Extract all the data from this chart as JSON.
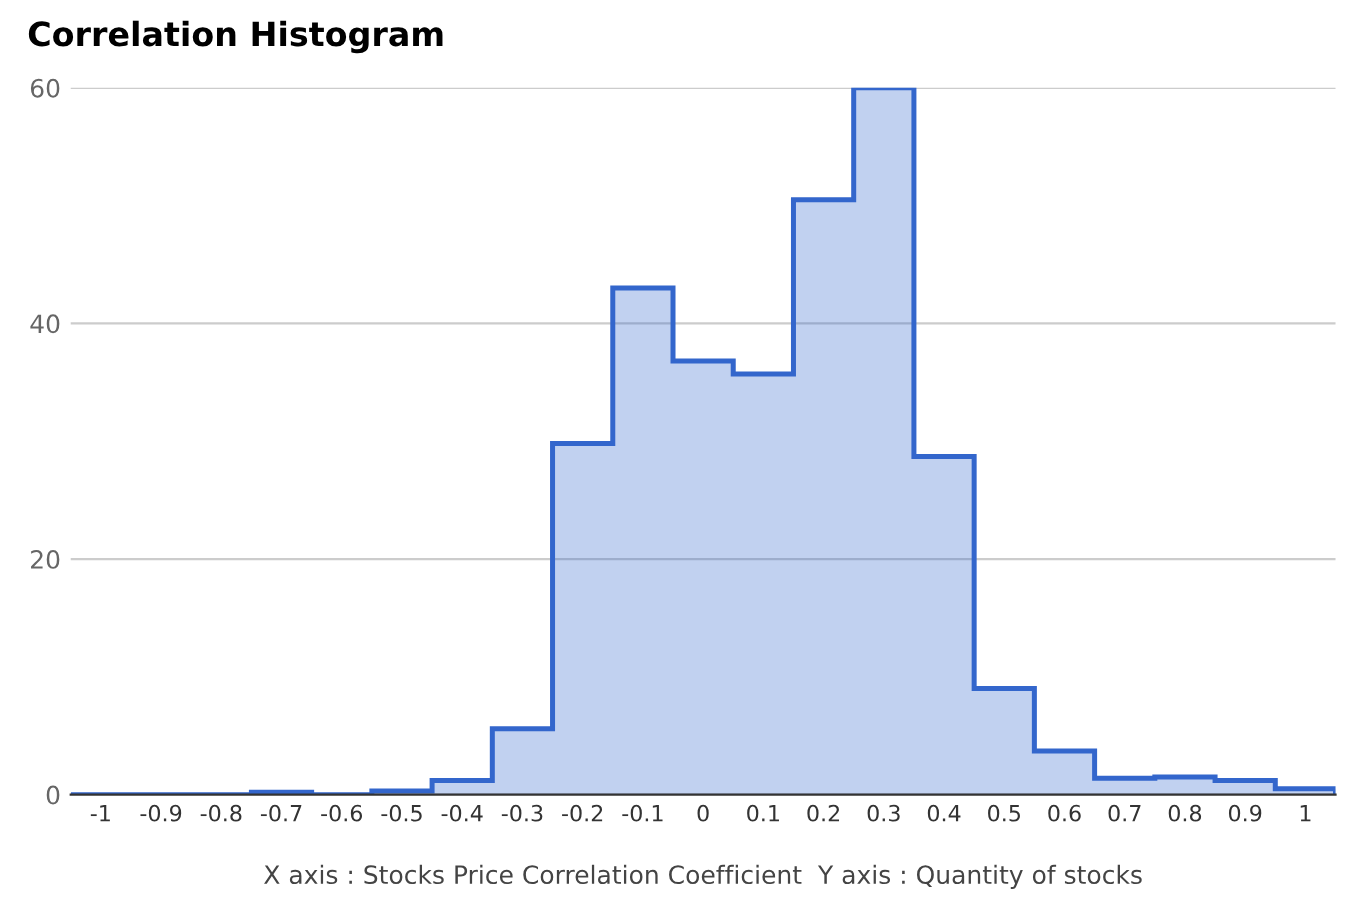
{
  "chart_data": {
    "type": "histogram",
    "title": "Correlation Histogram",
    "xlabel": "X axis : Stocks Price Correlation Coefficient  Y axis : Quantity of stocks",
    "bins": [
      -1.05,
      -0.95,
      -0.85,
      -0.75,
      -0.65,
      -0.55,
      -0.45,
      -0.35,
      -0.25,
      -0.15,
      -0.05,
      0.05,
      0.15,
      0.25,
      0.35,
      0.45,
      0.55,
      0.65,
      0.75,
      0.85,
      0.95,
      1.05
    ],
    "values": [
      0,
      0,
      0,
      0.2,
      0,
      0.3,
      1.2,
      5.6,
      29.8,
      43,
      36.8,
      35.7,
      50.5,
      60,
      28.7,
      9,
      3.7,
      1.4,
      1.5,
      1.2,
      0.5
    ],
    "color": "#3366cc",
    "xlim": [
      -1.05,
      1.05
    ],
    "xticks": [
      -1,
      -0.9,
      -0.8,
      -0.7,
      -0.6,
      -0.5,
      -0.4,
      -0.3,
      -0.2,
      -0.1,
      0,
      0.1,
      0.2,
      0.3,
      0.4,
      0.5,
      0.6,
      0.7,
      0.8,
      0.9,
      1
    ],
    "ylim": [
      0,
      60
    ],
    "yticks": [
      0,
      20,
      40,
      60
    ],
    "grid": "y"
  }
}
